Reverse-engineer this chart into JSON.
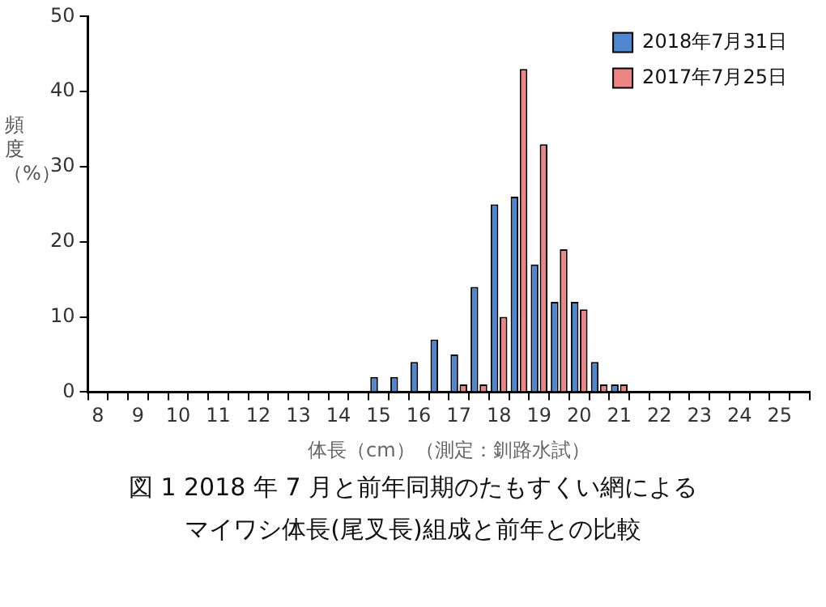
{
  "chart_data": {
    "type": "bar",
    "title": "図 1  2018 年 7 月と前年同期のたもすくい網によるマイワシ体長(尾叉長)組成と前年との比較",
    "xlabel": "体長（cm）（測定：釧路水試）",
    "ylabel": "頻度（%）",
    "categories": [
      "8",
      null,
      "9",
      null,
      "10",
      null,
      "11",
      null,
      "12",
      null,
      "13",
      null,
      "14",
      null,
      "15",
      null,
      "16",
      null,
      "17",
      null,
      "18",
      null,
      "19",
      null,
      "20",
      null,
      "21",
      null,
      "22",
      null,
      "23",
      null,
      "24",
      null,
      "25",
      null
    ],
    "series": [
      {
        "name": "2018年7月31日",
        "color": "#4f86d0",
        "values": [
          null,
          null,
          null,
          null,
          null,
          null,
          null,
          null,
          null,
          null,
          null,
          null,
          null,
          null,
          2,
          2,
          4,
          7,
          5,
          14,
          25,
          26,
          17,
          12,
          12,
          4,
          1,
          null,
          null,
          null,
          null,
          null,
          null,
          null,
          null,
          null
        ]
      },
      {
        "name": "2017年7月25日",
        "color": "#ee8585",
        "values": [
          null,
          null,
          null,
          null,
          null,
          null,
          null,
          null,
          null,
          null,
          null,
          null,
          null,
          null,
          null,
          null,
          null,
          null,
          1,
          1,
          10,
          43,
          33,
          19,
          11,
          1,
          1,
          null,
          null,
          null,
          null,
          null,
          null,
          null,
          null,
          null
        ]
      }
    ],
    "ylim": [
      0,
      50
    ],
    "yticks": [
      0,
      10,
      20,
      30,
      40,
      50
    ],
    "grid": false,
    "legend": "top right"
  }
}
